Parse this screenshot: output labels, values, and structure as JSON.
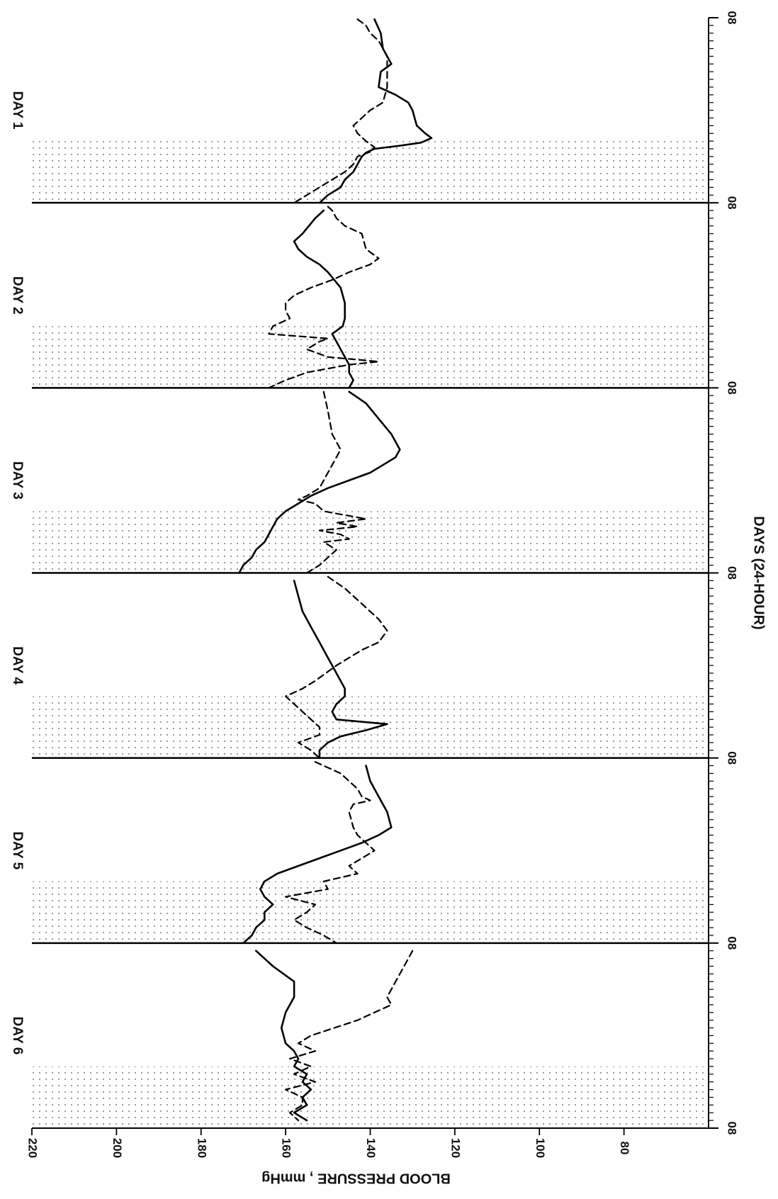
{
  "chart_data": {
    "type": "line",
    "title": "",
    "xlabel": "DAYS (24-HOUR)",
    "ylabel": "BLOOD PRESSURE , mmHg",
    "orientation": "rotated-90-clockwise",
    "xlim": [
      0,
      144
    ],
    "ylim": [
      60,
      220
    ],
    "x_ticks": [
      {
        "value": 0,
        "label": "08"
      },
      {
        "value": 24,
        "label": "08"
      },
      {
        "value": 48,
        "label": "08"
      },
      {
        "value": 72,
        "label": "08"
      },
      {
        "value": 96,
        "label": "08"
      },
      {
        "value": 120,
        "label": "08"
      },
      {
        "value": 144,
        "label": "08"
      }
    ],
    "y_ticks": [
      {
        "value": 80,
        "label": "80"
      },
      {
        "value": 100,
        "label": "100"
      },
      {
        "value": 120,
        "label": "120"
      },
      {
        "value": 140,
        "label": "140"
      },
      {
        "value": 160,
        "label": "160"
      },
      {
        "value": 180,
        "label": "180"
      },
      {
        "value": 200,
        "label": "200"
      },
      {
        "value": 220,
        "label": "220"
      }
    ],
    "day_labels": [
      {
        "label": "DAY 1",
        "x": 12
      },
      {
        "label": "DAY 2",
        "x": 36
      },
      {
        "label": "DAY 3",
        "x": 60
      },
      {
        "label": "DAY 4",
        "x": 84
      },
      {
        "label": "DAY 5",
        "x": 108
      },
      {
        "label": "DAY 6",
        "x": 132
      }
    ],
    "night_periods": [
      [
        16,
        24
      ],
      [
        40,
        48
      ],
      [
        64,
        72
      ],
      [
        88,
        96
      ],
      [
        112,
        120
      ],
      [
        136,
        144
      ]
    ],
    "day_boundaries": [
      24,
      48,
      72,
      96,
      120
    ],
    "grid": false,
    "series": [
      {
        "style": "solid",
        "segments": [
          [
            [
              0.2,
              139
            ],
            [
              2,
              137.5
            ],
            [
              4,
              137
            ],
            [
              6,
              135
            ],
            [
              7,
              137.5
            ],
            [
              9,
              138
            ],
            [
              10,
              134
            ],
            [
              11,
              131
            ],
            [
              12,
              130
            ],
            [
              13,
              129.5
            ],
            [
              14,
              129
            ],
            [
              15,
              127
            ],
            [
              15.6,
              125.5
            ],
            [
              16.2,
              128
            ],
            [
              16.6,
              133
            ],
            [
              17,
              139
            ],
            [
              17.5,
              141
            ],
            [
              18,
              142
            ],
            [
              19,
              143
            ],
            [
              20,
              144
            ],
            [
              21,
              146
            ],
            [
              22,
              147
            ],
            [
              23,
              150
            ],
            [
              24,
              152
            ]
          ],
          [
            [
              25,
              151
            ],
            [
              26,
              153
            ],
            [
              28,
              156
            ],
            [
              29,
              158
            ],
            [
              30,
              157
            ],
            [
              31,
              155
            ],
            [
              32,
              152
            ],
            [
              33,
              150
            ],
            [
              35,
              147
            ],
            [
              37,
              146
            ],
            [
              39,
              146
            ],
            [
              40,
              146.5
            ],
            [
              41,
              149
            ],
            [
              42,
              148
            ],
            [
              43,
              147
            ],
            [
              44,
              146
            ],
            [
              45,
              145
            ],
            [
              46,
              145
            ],
            [
              47,
              144
            ],
            [
              48,
              145
            ]
          ],
          [
            [
              48.5,
              145
            ],
            [
              50,
              141
            ],
            [
              52,
              138
            ],
            [
              54,
              135
            ],
            [
              56,
              133
            ],
            [
              57,
              134
            ],
            [
              58,
              137
            ],
            [
              59,
              140
            ],
            [
              60,
              145
            ],
            [
              61,
              150
            ],
            [
              62,
              154
            ],
            [
              63,
              157
            ],
            [
              64,
              160
            ],
            [
              65,
              162
            ],
            [
              66,
              163
            ],
            [
              67,
              164
            ],
            [
              68,
              165
            ],
            [
              69,
              167
            ],
            [
              70,
              168
            ],
            [
              71,
              170
            ],
            [
              72,
              171
            ]
          ],
          [
            [
              73,
              158
            ],
            [
              75,
              157
            ],
            [
              77,
              156
            ],
            [
              79,
              154
            ],
            [
              81,
              152
            ],
            [
              83,
              150
            ],
            [
              84,
              149
            ],
            [
              85,
              148
            ],
            [
              86,
              147
            ],
            [
              87,
              146
            ],
            [
              88,
              146
            ],
            [
              89,
              148
            ],
            [
              90,
              149
            ],
            [
              91,
              148
            ],
            [
              91.6,
              136
            ],
            [
              92.4,
              141
            ],
            [
              93.2,
              147
            ],
            [
              94,
              150
            ],
            [
              95,
              152
            ],
            [
              96,
              152
            ]
          ],
          [
            [
              97,
              141
            ],
            [
              99,
              140
            ],
            [
              101,
              138
            ],
            [
              103,
              136
            ],
            [
              105,
              135
            ],
            [
              106,
              138
            ],
            [
              107,
              142
            ],
            [
              108,
              147
            ],
            [
              109,
              152
            ],
            [
              110,
              157
            ],
            [
              111,
              162
            ],
            [
              112,
              165
            ],
            [
              113,
              166
            ],
            [
              114,
              165
            ],
            [
              115,
              163
            ],
            [
              116,
              165
            ],
            [
              117,
              165
            ],
            [
              118,
              167
            ],
            [
              119,
              168
            ],
            [
              120,
              170
            ]
          ],
          [
            [
              121,
              167
            ],
            [
              123,
              163
            ],
            [
              125,
              158
            ],
            [
              127,
              158
            ],
            [
              129,
              160
            ],
            [
              131,
              161
            ],
            [
              133,
              160
            ],
            [
              134,
              158
            ],
            [
              135,
              157
            ],
            [
              136,
              158
            ],
            [
              137,
              155
            ],
            [
              138,
              156
            ],
            [
              139,
              154
            ],
            [
              140,
              156
            ],
            [
              141,
              155
            ],
            [
              142,
              158
            ],
            [
              143,
              155
            ]
          ]
        ]
      },
      {
        "style": "dashed",
        "segments": [
          [
            [
              0.2,
              143
            ],
            [
              1,
              141
            ],
            [
              2,
              140
            ],
            [
              3,
              138
            ],
            [
              5,
              136
            ],
            [
              7,
              136
            ],
            [
              9,
              136
            ],
            [
              11,
              137
            ],
            [
              12,
              140
            ],
            [
              13,
              142
            ],
            [
              14,
              144
            ],
            [
              15,
              143
            ],
            [
              16,
              141
            ],
            [
              16.8,
              139
            ],
            [
              17.4,
              140
            ],
            [
              18,
              143
            ],
            [
              19,
              144
            ],
            [
              20,
              146
            ],
            [
              21,
              149
            ],
            [
              22,
              152
            ],
            [
              23,
              155
            ],
            [
              24,
              158
            ]
          ],
          [
            [
              24.5,
              150
            ],
            [
              25,
              149
            ],
            [
              26,
              148
            ],
            [
              27,
              146
            ],
            [
              28,
              142
            ],
            [
              30,
              141
            ],
            [
              31.2,
              138
            ],
            [
              32,
              140
            ],
            [
              33,
              145
            ],
            [
              34,
              149
            ],
            [
              35,
              154
            ],
            [
              36,
              158
            ],
            [
              37,
              160
            ],
            [
              38,
              160
            ],
            [
              39,
              159
            ],
            [
              40,
              163
            ],
            [
              41,
              164
            ],
            [
              41.6,
              150
            ],
            [
              42,
              152
            ],
            [
              43,
              155
            ],
            [
              44,
              150
            ],
            [
              44.6,
              138
            ],
            [
              45,
              145
            ],
            [
              46,
              155
            ],
            [
              47,
              160
            ],
            [
              48,
              164
            ]
          ],
          [
            [
              48.5,
              151
            ],
            [
              51,
              150
            ],
            [
              54,
              149
            ],
            [
              56,
              147
            ],
            [
              57,
              148
            ],
            [
              58,
              149
            ],
            [
              59,
              150
            ],
            [
              61,
              152
            ],
            [
              62,
              155
            ],
            [
              62.5,
              157
            ],
            [
              63,
              153
            ],
            [
              64,
              151
            ],
            [
              65,
              141
            ],
            [
              65.5,
              148
            ],
            [
              66,
              143
            ],
            [
              66.5,
              152
            ],
            [
              67,
              147
            ],
            [
              67.6,
              145
            ],
            [
              68,
              151
            ],
            [
              69,
              148
            ],
            [
              70,
              150
            ],
            [
              71,
              152
            ],
            [
              72,
              155
            ]
          ],
          [
            [
              72.5,
              150
            ],
            [
              74,
              146
            ],
            [
              76,
              142
            ],
            [
              78,
              138
            ],
            [
              79.5,
              136
            ],
            [
              81,
              138
            ],
            [
              82,
              142
            ],
            [
              84,
              148
            ],
            [
              86,
              153
            ],
            [
              87,
              156
            ],
            [
              88,
              160
            ],
            [
              89,
              158
            ],
            [
              90,
              156
            ],
            [
              91,
              154
            ],
            [
              92,
              152
            ],
            [
              93,
              152
            ],
            [
              94,
              157
            ],
            [
              95,
              154
            ],
            [
              96,
              152
            ]
          ],
          [
            [
              96.5,
              153
            ],
            [
              98,
              147
            ],
            [
              100,
              143
            ],
            [
              101,
              142
            ],
            [
              101.5,
              140
            ],
            [
              102,
              144
            ],
            [
              103,
              145
            ],
            [
              105,
              144
            ],
            [
              106,
              143
            ],
            [
              107,
              141
            ],
            [
              108,
              139
            ],
            [
              110,
              145
            ],
            [
              111,
              143
            ],
            [
              112,
              151
            ],
            [
              113,
              150
            ],
            [
              114,
              160
            ],
            [
              115,
              153
            ],
            [
              116,
              155
            ],
            [
              117,
              158
            ],
            [
              118,
              155
            ],
            [
              119,
              151
            ],
            [
              120,
              148
            ]
          ],
          [
            [
              121,
              130
            ],
            [
              123,
              132
            ],
            [
              125,
              134
            ],
            [
              127,
              136
            ],
            [
              128,
              135
            ],
            [
              130,
              143
            ],
            [
              132,
              154
            ],
            [
              133,
              157
            ],
            [
              134,
              153
            ],
            [
              135,
              159
            ],
            [
              136,
              154
            ],
            [
              137,
              158
            ],
            [
              138,
              153
            ],
            [
              139,
              160
            ],
            [
              140,
              156
            ],
            [
              141,
              156
            ],
            [
              142,
              159
            ],
            [
              143,
              157
            ]
          ]
        ]
      }
    ]
  }
}
